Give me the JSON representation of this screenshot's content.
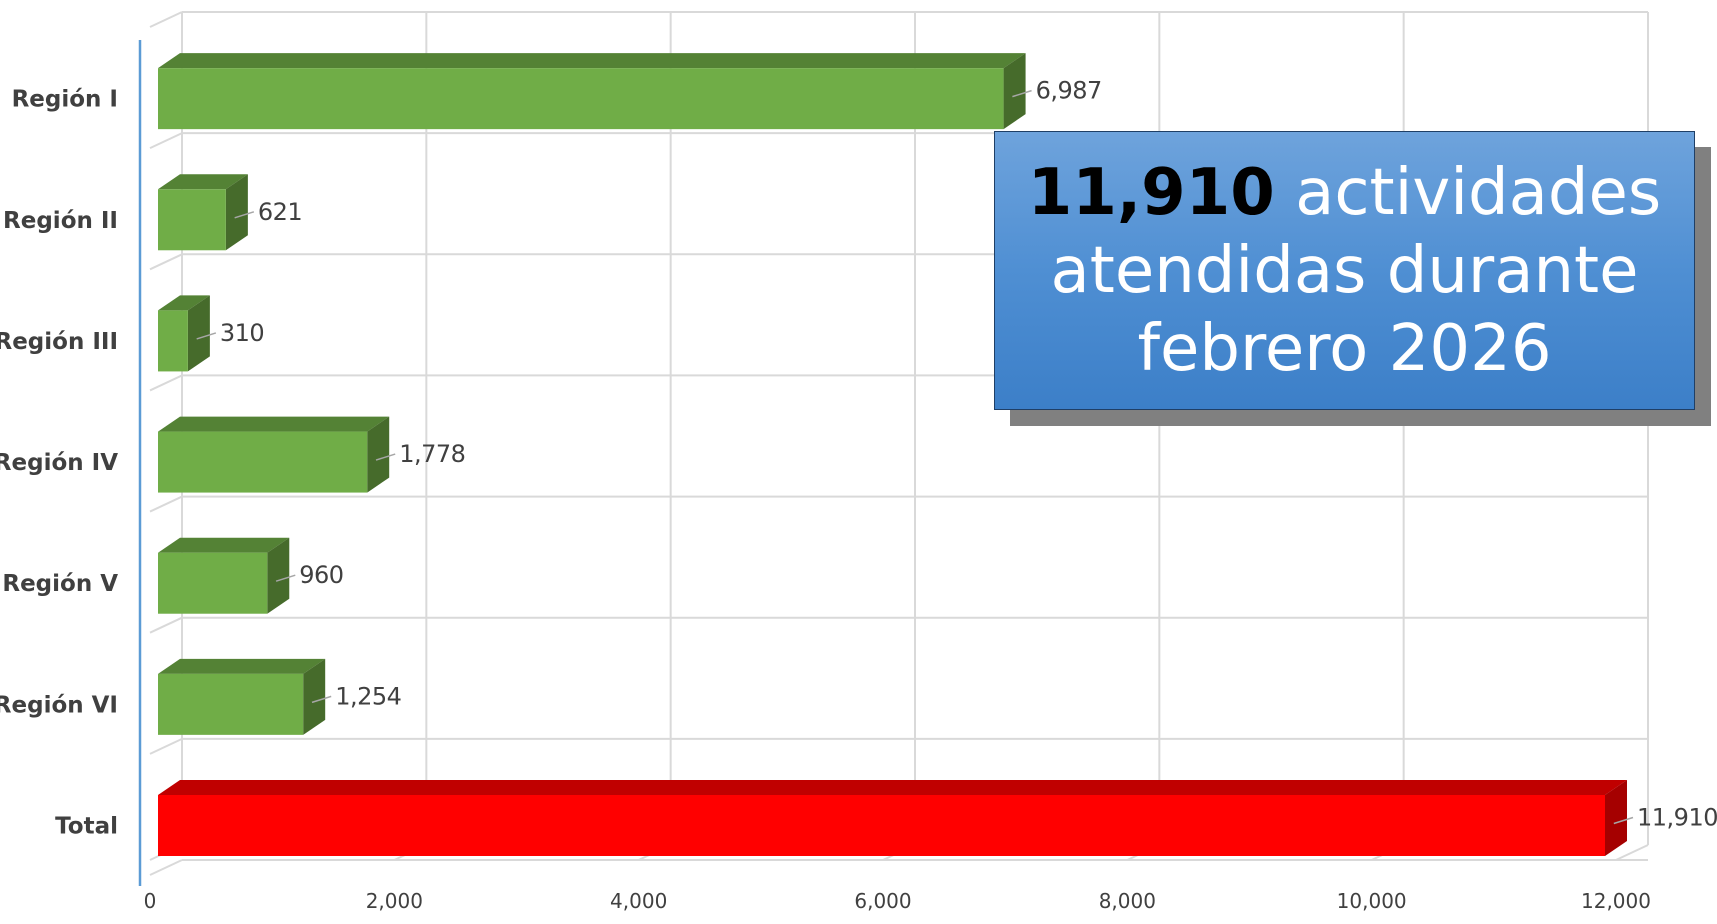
{
  "chart_data": {
    "type": "bar",
    "orientation": "horizontal",
    "categories": [
      "Región I",
      "Región II",
      "Región III",
      "Región IV",
      "Región V",
      "Región VI",
      "Total"
    ],
    "values": [
      6987,
      621,
      310,
      1778,
      960,
      1254,
      11910
    ],
    "data_labels": [
      "6,987",
      "621",
      "310",
      "1,778",
      "960",
      "1,254",
      "11,910"
    ],
    "xlim": [
      0,
      12000
    ],
    "x_ticks": [
      "0",
      "2,000",
      "4,000",
      "6,000",
      "8,000",
      "10,000",
      "12,000"
    ],
    "grid": true,
    "style": "3d",
    "colors": {
      "region": "#70ad47",
      "region_top": "#548235",
      "region_side": "#466b2b",
      "total": "#ff0000",
      "total_top": "#c00000",
      "total_side": "#a50000"
    }
  },
  "callout": {
    "number": "11,910",
    "text_line1": " actividades",
    "text_line2": "atendidas durante",
    "text_line3": "febrero 2026"
  }
}
